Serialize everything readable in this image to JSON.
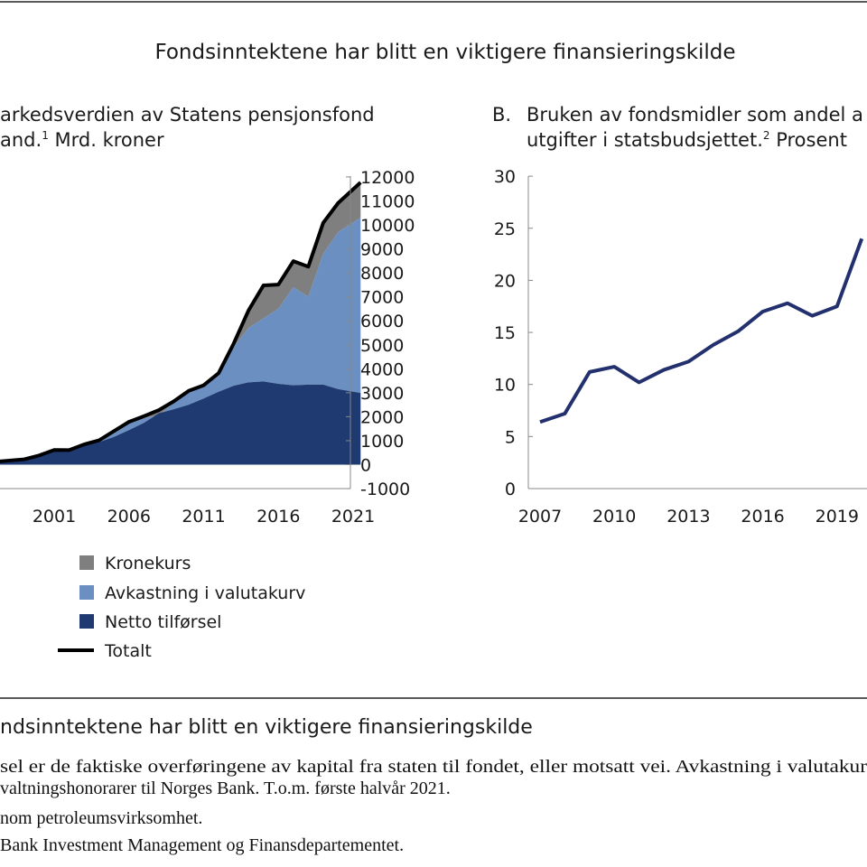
{
  "figure_title": "Fondsinntektene har blitt en viktigere finansieringskilde",
  "colors": {
    "netto": "#1f3a70",
    "avkastning": "#6a8fc0",
    "kronekurs": "#7f7f7f",
    "totalt": "#000000",
    "line_b": "#23306e"
  },
  "chart_data": [
    {
      "type": "area",
      "panel": "A",
      "title_lines": [
        "arkedsverdien av Statens pensjonsfond",
        "and.",
        "1",
        " Mrd. kroner"
      ],
      "ylim": [
        -1000,
        12000
      ],
      "yticks": [
        "12000",
        "11000",
        "10000",
        "9000",
        "8000",
        "7000",
        "6000",
        "5000",
        "4000",
        "3000",
        "2000",
        "1000",
        "0",
        "-1000"
      ],
      "xticks": [
        "2001",
        "2006",
        "2011",
        "2016",
        "2021"
      ],
      "x": [
        1996,
        1997,
        1998,
        1999,
        2000,
        2001,
        2002,
        2003,
        2004,
        2005,
        2006,
        2007,
        2008,
        2009,
        2010,
        2011,
        2012,
        2013,
        2014,
        2015,
        2016,
        2017,
        2018,
        2019,
        2020,
        2021.5
      ],
      "series": [
        {
          "name": "Netto tilførsel",
          "values": [
            48,
            105,
            165,
            190,
            340,
            590,
            600,
            800,
            940,
            1160,
            1440,
            1740,
            2140,
            2310,
            2500,
            2760,
            3040,
            3290,
            3430,
            3470,
            3370,
            3310,
            3340,
            3340,
            3150,
            2990
          ]
        },
        {
          "name": "Avkastning i valutakurv",
          "values": [
            0,
            8,
            7,
            32,
            46,
            24,
            9,
            45,
            76,
            220,
            300,
            210,
            -90,
            290,
            500,
            540,
            660,
            1610,
            2270,
            2630,
            3130,
            4090,
            3660,
            5460,
            6550,
            7310
          ]
        },
        {
          "name": "Kronekurs",
          "values": [
            0,
            0,
            0,
            0,
            0,
            0,
            0,
            0,
            0,
            19,
            44,
            69,
            225,
            40,
            77,
            12,
            116,
            138,
            731,
            1375,
            1010,
            1088,
            1256,
            1288,
            1214,
            1469
          ]
        },
        {
          "name": "Totalt",
          "values": [
            48,
            113,
            172,
            222,
            386,
            614,
            609,
            845,
            1016,
            1399,
            1784,
            2019,
            2275,
            2640,
            3077,
            3312,
            3816,
            5038,
            6431,
            7475,
            7510,
            8488,
            8256,
            10088,
            10914,
            11769
          ]
        }
      ],
      "legend": [
        "Kronekurs",
        "Avkastning i valutakurv",
        "Netto tilførsel",
        "Totalt"
      ],
      "legend_placement": "bottom-left"
    },
    {
      "type": "line",
      "panel": "B",
      "title_lines": [
        "B.",
        "Bruken av fondsmidler som andel a",
        "utgifter i statsbudsjettet.",
        "2",
        " Prosent"
      ],
      "ylim": [
        0,
        30
      ],
      "yticks": [
        "30",
        "25",
        "20",
        "15",
        "10",
        "5",
        "0"
      ],
      "xticks": [
        "2007",
        "2010",
        "2013",
        "2016",
        "2019"
      ],
      "x": [
        2007,
        2008,
        2009,
        2010,
        2011,
        2012,
        2013,
        2014,
        2015,
        2016,
        2017,
        2018,
        2019,
        2020
      ],
      "values": [
        6.4,
        7.2,
        11.2,
        11.7,
        10.2,
        11.4,
        12.2,
        13.8,
        15.1,
        17.0,
        17.8,
        16.6,
        17.5,
        24.0
      ]
    }
  ],
  "caption": {
    "title": "ndsinntektene har blitt en viktigere finansieringskilde",
    "lines": [
      "sel er de faktiske overføringene av kapital fra staten til fondet, eller motsatt vei. Avkastning i valutakur",
      "valtningshonorarer til Norges Bank. T.o.m. første halvår 2021.",
      "nom petroleumsvirksomhet.",
      " Bank Investment Management og Finansdepartementet."
    ]
  }
}
